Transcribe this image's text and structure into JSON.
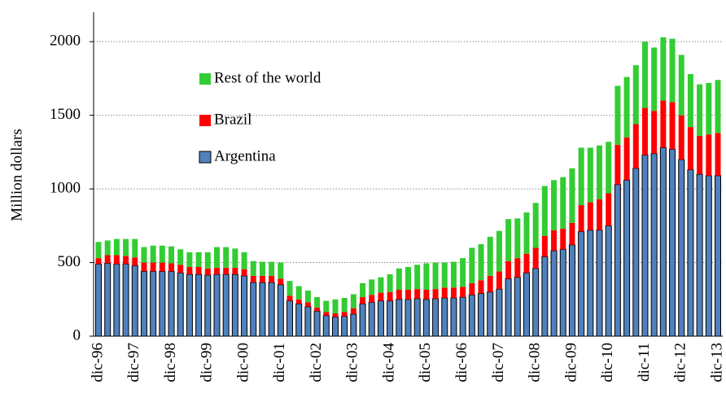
{
  "chart_data": {
    "type": "stacked_bar",
    "y_label": "Million dollars",
    "categories": [
      "dic-96",
      null,
      null,
      null,
      "dic-97",
      null,
      null,
      null,
      "dic-98",
      null,
      null,
      null,
      "dic-99",
      null,
      null,
      null,
      "dic-00",
      null,
      null,
      null,
      "dic-01",
      null,
      null,
      null,
      "dic-02",
      null,
      null,
      null,
      "dic-03",
      null,
      null,
      null,
      "dic-04",
      null,
      null,
      null,
      "dic-05",
      null,
      null,
      null,
      "dic-06",
      null,
      null,
      null,
      "dic-07",
      null,
      null,
      null,
      "dic-08",
      null,
      null,
      null,
      "dic-09",
      null,
      null,
      null,
      "dic-10",
      null,
      null,
      null,
      "dic-11",
      null,
      null,
      null,
      "dic-12",
      null,
      null,
      null,
      "dic-13"
    ],
    "series": [
      {
        "name": "Argentina",
        "color": "#4f81bd",
        "values": [
          490,
          495,
          490,
          490,
          480,
          440,
          440,
          440,
          440,
          430,
          420,
          420,
          415,
          420,
          420,
          420,
          410,
          365,
          365,
          365,
          350,
          240,
          220,
          200,
          170,
          140,
          130,
          135,
          150,
          220,
          230,
          240,
          240,
          250,
          250,
          255,
          250,
          255,
          260,
          260,
          265,
          280,
          290,
          300,
          320,
          390,
          400,
          430,
          460,
          540,
          580,
          590,
          620,
          710,
          720,
          720,
          750,
          1030,
          1060,
          1140,
          1230,
          1240,
          1280,
          1270,
          1200,
          1130,
          1100,
          1090,
          1090
        ]
      },
      {
        "name": "Brazil",
        "color": "#ff0000",
        "values": [
          40,
          55,
          60,
          55,
          55,
          60,
          60,
          60,
          55,
          55,
          50,
          50,
          45,
          45,
          45,
          45,
          45,
          45,
          45,
          45,
          40,
          35,
          30,
          30,
          25,
          25,
          25,
          30,
          40,
          45,
          50,
          55,
          60,
          65,
          65,
          65,
          65,
          65,
          70,
          70,
          70,
          80,
          90,
          110,
          120,
          120,
          130,
          130,
          140,
          140,
          140,
          140,
          150,
          180,
          190,
          210,
          220,
          270,
          290,
          300,
          320,
          290,
          320,
          320,
          300,
          290,
          260,
          280,
          290
        ]
      },
      {
        "name": "Rest of the world",
        "color": "#33cc33",
        "values": [
          110,
          100,
          110,
          115,
          125,
          105,
          115,
          115,
          115,
          105,
          100,
          100,
          110,
          140,
          140,
          130,
          115,
          100,
          95,
          95,
          110,
          100,
          90,
          80,
          70,
          75,
          95,
          95,
          95,
          95,
          105,
          105,
          120,
          145,
          155,
          165,
          180,
          180,
          170,
          175,
          195,
          240,
          245,
          265,
          275,
          285,
          270,
          280,
          305,
          340,
          340,
          350,
          370,
          390,
          370,
          365,
          350,
          400,
          410,
          400,
          450,
          430,
          430,
          430,
          410,
          360,
          350,
          350,
          360
        ]
      }
    ],
    "ylim": [
      0,
      2200
    ],
    "yticks": [
      0,
      500,
      1000,
      1500,
      2000
    ],
    "grid": true,
    "legend": "upper-left"
  }
}
